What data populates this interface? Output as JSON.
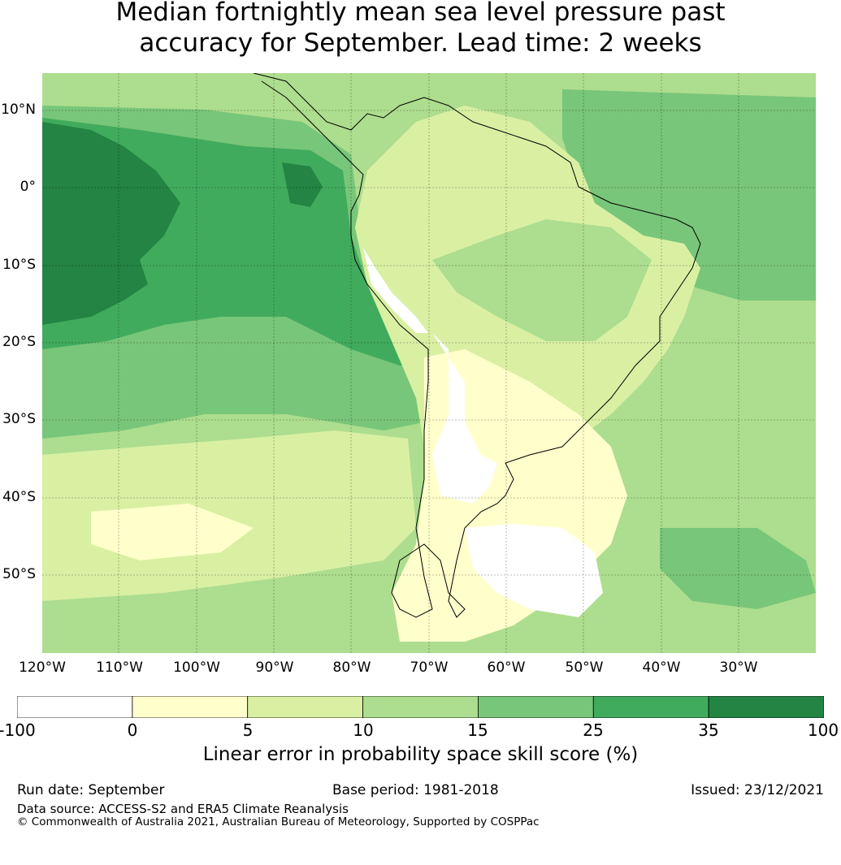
{
  "title_line1": "Median fortnightly mean sea level pressure past",
  "title_line2": "accuracy for September. Lead time: 2 weeks",
  "lat_labels": [
    "10°N",
    "0°",
    "10°S",
    "20°S",
    "30°S",
    "40°S",
    "50°S"
  ],
  "lon_labels": [
    "120°W",
    "110°W",
    "100°W",
    "90°W",
    "80°W",
    "70°W",
    "60°W",
    "50°W",
    "40°W",
    "30°W"
  ],
  "colorbar": {
    "ticks": [
      "-100",
      "0",
      "5",
      "10",
      "15",
      "25",
      "35",
      "100"
    ],
    "colors": [
      "#ffffff",
      "#ffffcc",
      "#d9f0a3",
      "#addd8e",
      "#78c679",
      "#41ab5d",
      "#238443"
    ],
    "label": "Linear error in probability space skill score (%)"
  },
  "footer": {
    "run_date": "Run date: September",
    "base_period": "Base period: 1981-2018",
    "issued": "Issued: 23/12/2021",
    "data_source": "Data source: ACCESS-S2 and ERA5 Climate Reanalysis",
    "copyright": "© Commonwealth of Australia 2021, Australian Bureau of Meteorology, Supported by COSPPac"
  }
}
